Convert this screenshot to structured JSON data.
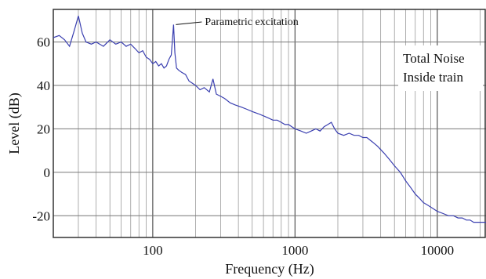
{
  "chart_data": {
    "type": "line",
    "xlabel": "Frequency (Hz)",
    "ylabel": "Level (dB)",
    "x_scale": "log",
    "xlim": [
      20,
      22000
    ],
    "ylim": [
      -30,
      75
    ],
    "x_ticks": [
      100,
      1000,
      10000
    ],
    "x_tick_labels": [
      "100",
      "1000",
      "10000"
    ],
    "y_ticks": [
      -20,
      0,
      20,
      40,
      60
    ],
    "y_tick_labels": [
      "-20",
      "0",
      "20",
      "40",
      "60"
    ],
    "grid": true,
    "line_color": "#3a3fb0",
    "legend_lines": [
      "Total Noise",
      "Inside train"
    ],
    "legend_placement": "top-right",
    "annotations": [
      {
        "text": "Parametric excitation",
        "x": 140,
        "y": 68
      }
    ],
    "series": [
      {
        "x": [
          20,
          22,
          24,
          26,
          28,
          30,
          32,
          34,
          37,
          40,
          45,
          50,
          55,
          60,
          65,
          70,
          75,
          80,
          85,
          90,
          95,
          100,
          105,
          110,
          115,
          120,
          125,
          130,
          135,
          138,
          140,
          143,
          147,
          152,
          160,
          170,
          180,
          190,
          200,
          215,
          230,
          250,
          265,
          280,
          300,
          320,
          350,
          380,
          420,
          460,
          500,
          550,
          600,
          650,
          700,
          750,
          800,
          850,
          900,
          950,
          1000,
          1100,
          1200,
          1300,
          1400,
          1500,
          1600,
          1700,
          1800,
          1900,
          2000,
          2200,
          2400,
          2600,
          2800,
          3000,
          3200,
          3500,
          3800,
          4200,
          4600,
          5000,
          5500,
          6000,
          6500,
          7000,
          7500,
          8000,
          8500,
          9000,
          9500,
          10000,
          11000,
          12000,
          13000,
          14000,
          15000,
          16000,
          17000,
          18000,
          19000,
          20000,
          21000,
          22000
        ],
        "y": [
          62,
          63,
          61,
          58,
          65,
          72,
          64,
          60,
          59,
          60,
          58,
          61,
          59,
          60,
          58,
          59,
          57,
          55,
          56,
          53,
          52,
          50,
          51,
          49,
          50,
          48,
          49,
          52,
          54,
          62,
          68,
          55,
          48,
          47,
          46,
          45,
          42,
          41,
          40,
          38,
          39,
          37,
          43,
          36,
          35,
          34,
          32,
          31,
          30,
          29,
          28,
          27,
          26,
          25,
          24,
          24,
          23,
          22,
          22,
          21,
          20,
          19,
          18,
          19,
          20,
          19,
          21,
          22,
          23,
          20,
          18,
          17,
          18,
          17,
          17,
          16,
          16,
          14,
          12,
          9,
          6,
          3,
          0,
          -4,
          -7,
          -10,
          -12,
          -14,
          -15,
          -16,
          -17,
          -18,
          -19,
          -20,
          -20,
          -21,
          -21,
          -22,
          -22,
          -23,
          -23,
          -23,
          -23,
          -23
        ]
      }
    ]
  }
}
